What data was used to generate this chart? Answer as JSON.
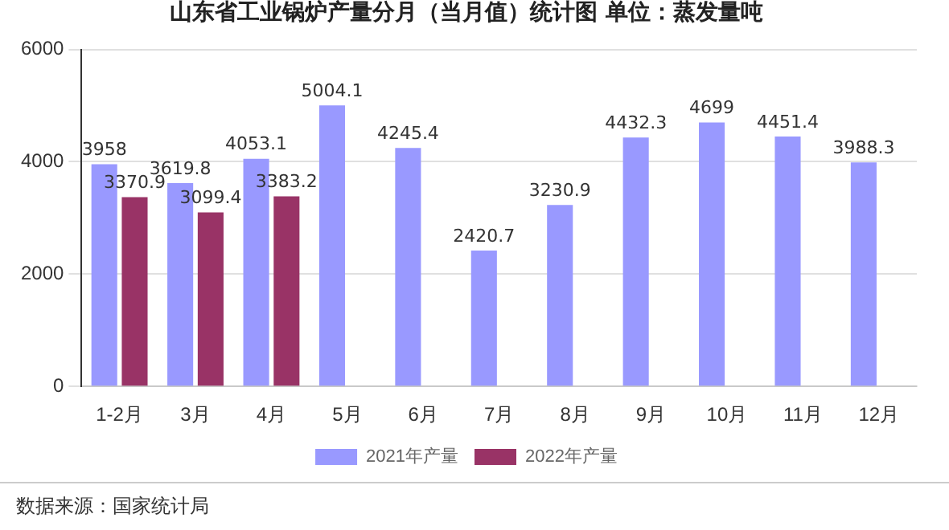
{
  "chart_data": {
    "type": "bar",
    "title": "山东省工业锅炉产量分月（当月值）统计图 单位：蒸发量吨",
    "categories": [
      "1-2月",
      "3月",
      "4月",
      "5月",
      "6月",
      "7月",
      "8月",
      "9月",
      "10月",
      "11月",
      "12月"
    ],
    "series": [
      {
        "name": "2021年产量",
        "color": "#9999ff",
        "values": [
          3958,
          3619.8,
          4053.1,
          5004.1,
          4245.4,
          2420.7,
          3230.9,
          4432.3,
          4699,
          4451.4,
          3988.3
        ]
      },
      {
        "name": "2022年产量",
        "color": "#993366",
        "values": [
          3370.9,
          3099.4,
          3383.2,
          null,
          null,
          null,
          null,
          null,
          null,
          null,
          null
        ]
      }
    ],
    "ylim": [
      0,
      6000
    ],
    "yticks": [
      0,
      2000,
      4000,
      6000
    ],
    "grid": "y",
    "legend": "bottom",
    "data_labels": true,
    "annotations": [
      "数据来源：国家统计局"
    ]
  }
}
